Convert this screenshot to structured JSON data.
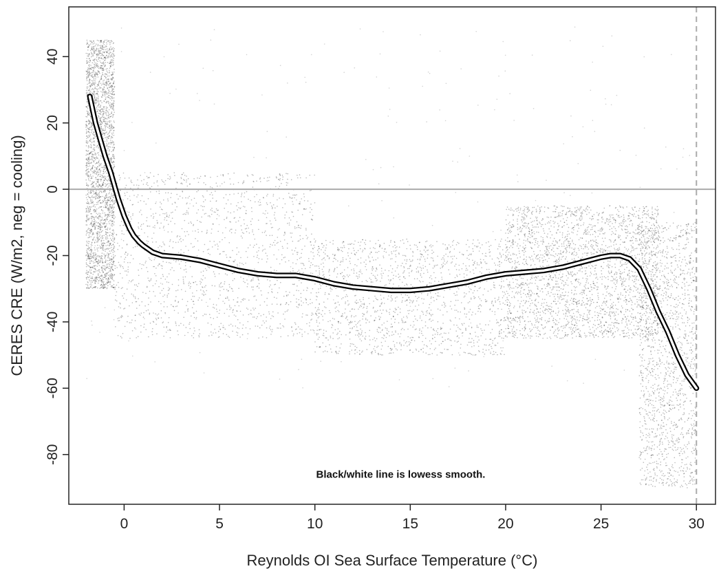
{
  "chart_data": {
    "type": "scatter",
    "xlabel": "Reynolds OI Sea Surface Temperature (°C)",
    "ylabel": "CERES CRE (W/m2, neg = cooling)",
    "xlim": [
      -2.9,
      31.0
    ],
    "ylim": [
      -95,
      55
    ],
    "x_ticks": [
      0,
      5,
      10,
      15,
      20,
      25,
      30
    ],
    "y_ticks": [
      40,
      20,
      0,
      -20,
      -40,
      -60,
      -80
    ],
    "x_tick_labels": [
      "0",
      "5",
      "10",
      "15",
      "20",
      "25",
      "30"
    ],
    "y_tick_labels": [
      "40",
      "20",
      "0",
      "-20",
      "-40",
      "-60",
      "-80"
    ],
    "annotation": "Black/white line is lowess smooth.",
    "reference_lines": [
      {
        "orientation": "horizontal",
        "value": 0,
        "style": "solid",
        "color": "#aaaaaa"
      },
      {
        "orientation": "vertical",
        "value": 30,
        "style": "dashed",
        "color": "#aaaaaa"
      }
    ],
    "grid": false,
    "colors": {
      "points": "#000000",
      "smooth_line_outer": "#000000",
      "smooth_line_inner": "#ffffff"
    },
    "scatter_description_regions": [
      {
        "x_range": [
          -2.0,
          -0.5
        ],
        "y_range": [
          -30,
          45
        ],
        "density": "high"
      },
      {
        "x_range": [
          -0.5,
          10.0
        ],
        "y_range": [
          -45,
          5
        ],
        "density": "medium"
      },
      {
        "x_range": [
          10.0,
          20.0
        ],
        "y_range": [
          -50,
          -15
        ],
        "density": "medium"
      },
      {
        "x_range": [
          20.0,
          28.0
        ],
        "y_range": [
          -45,
          -5
        ],
        "density": "high"
      },
      {
        "x_range": [
          27.0,
          30.0
        ],
        "y_range": [
          -90,
          -10
        ],
        "density": "medium"
      }
    ],
    "series": [
      {
        "x": [
          -1.8,
          -1.5,
          -1.2,
          -1.0,
          -0.7,
          -0.5,
          -0.3,
          0.0,
          0.3,
          0.5,
          0.8,
          1.0,
          1.5,
          2.0,
          3.0,
          4.0,
          5.0,
          6.0,
          7.0,
          8.0,
          9.0,
          10.0,
          11.0,
          12.0,
          13.0,
          14.0,
          15.0,
          16.0,
          17.0,
          18.0,
          19.0,
          20.0,
          21.0,
          22.0,
          23.0,
          24.0,
          25.0,
          25.5,
          26.0,
          26.5,
          27.0,
          27.5,
          28.0,
          28.5,
          29.0,
          29.5,
          30.0
        ],
        "y": [
          28,
          20,
          14,
          10,
          5,
          1,
          -3,
          -8,
          -12,
          -14,
          -16,
          -17,
          -19,
          -20,
          -20.5,
          -21.5,
          -23,
          -24.5,
          -25.5,
          -26,
          -26,
          -27,
          -28.5,
          -29.5,
          -30,
          -30.5,
          -30.5,
          -30,
          -29,
          -28,
          -26.5,
          -25.5,
          -25,
          -24.5,
          -23.5,
          -22,
          -20.5,
          -20,
          -20,
          -21,
          -24,
          -30,
          -37,
          -43,
          -50,
          -56,
          -60
        ]
      }
    ]
  }
}
